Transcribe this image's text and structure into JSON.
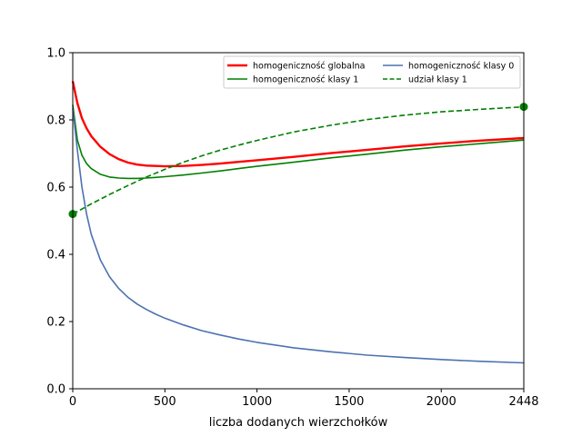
{
  "chart_data": {
    "type": "line",
    "xlabel": "liczba dodanych wierzchołków",
    "ylabel": "",
    "xlim": [
      0,
      2448
    ],
    "ylim": [
      0,
      1.0
    ],
    "xticks": [
      0,
      500,
      1000,
      1500,
      2000,
      2448
    ],
    "xtick_labels": [
      "0",
      "500",
      "1000",
      "1500",
      "2000",
      "2448"
    ],
    "yticks": [
      0.0,
      0.2,
      0.4,
      0.6,
      0.8,
      1.0
    ],
    "ytick_labels": [
      "0.0",
      "0.2",
      "0.4",
      "0.6",
      "0.8",
      "1.0"
    ],
    "grid": false,
    "legend_position": "top-right",
    "series": [
      {
        "name": "homogeniczność globalna",
        "color": "#ff0000",
        "style": "solid",
        "x": [
          0,
          25,
          50,
          75,
          100,
          150,
          200,
          250,
          300,
          350,
          400,
          450,
          500,
          600,
          700,
          800,
          900,
          1000,
          1200,
          1400,
          1600,
          1800,
          2000,
          2200,
          2448
        ],
        "y": [
          0.915,
          0.85,
          0.805,
          0.775,
          0.752,
          0.72,
          0.698,
          0.683,
          0.673,
          0.667,
          0.664,
          0.663,
          0.662,
          0.663,
          0.666,
          0.67,
          0.675,
          0.68,
          0.69,
          0.701,
          0.711,
          0.721,
          0.73,
          0.738,
          0.746
        ]
      },
      {
        "name": "homogeniczność klasy 1",
        "color": "#008000",
        "style": "solid",
        "x": [
          0,
          25,
          50,
          75,
          100,
          150,
          200,
          250,
          300,
          350,
          400,
          450,
          500,
          600,
          700,
          800,
          900,
          1000,
          1200,
          1400,
          1600,
          1800,
          2000,
          2200,
          2448
        ],
        "y": [
          0.845,
          0.74,
          0.695,
          0.67,
          0.655,
          0.638,
          0.63,
          0.627,
          0.626,
          0.626,
          0.627,
          0.629,
          0.631,
          0.636,
          0.642,
          0.648,
          0.655,
          0.662,
          0.674,
          0.687,
          0.698,
          0.71,
          0.72,
          0.729,
          0.74
        ]
      },
      {
        "name": "homogeniczność klasy 0",
        "color": "#4c72b0",
        "style": "solid",
        "x": [
          0,
          25,
          50,
          75,
          100,
          150,
          200,
          250,
          300,
          350,
          400,
          450,
          500,
          600,
          700,
          800,
          900,
          1000,
          1200,
          1400,
          1600,
          1800,
          2000,
          2200,
          2448
        ],
        "y": [
          0.835,
          0.71,
          0.6,
          0.52,
          0.46,
          0.383,
          0.333,
          0.298,
          0.272,
          0.252,
          0.236,
          0.222,
          0.21,
          0.19,
          0.173,
          0.16,
          0.148,
          0.138,
          0.122,
          0.11,
          0.1,
          0.093,
          0.087,
          0.082,
          0.077
        ]
      },
      {
        "name": "udział klasy 1",
        "color": "#008000",
        "style": "dashed",
        "x": [
          0,
          100,
          200,
          300,
          400,
          500,
          600,
          700,
          800,
          900,
          1000,
          1200,
          1400,
          1600,
          1800,
          2000,
          2200,
          2448
        ],
        "y": [
          0.52,
          0.55,
          0.578,
          0.605,
          0.63,
          0.653,
          0.674,
          0.693,
          0.71,
          0.725,
          0.739,
          0.764,
          0.784,
          0.801,
          0.814,
          0.824,
          0.831,
          0.839
        ],
        "markers": [
          [
            0,
            0.52
          ],
          [
            2448,
            0.839
          ]
        ]
      }
    ]
  }
}
